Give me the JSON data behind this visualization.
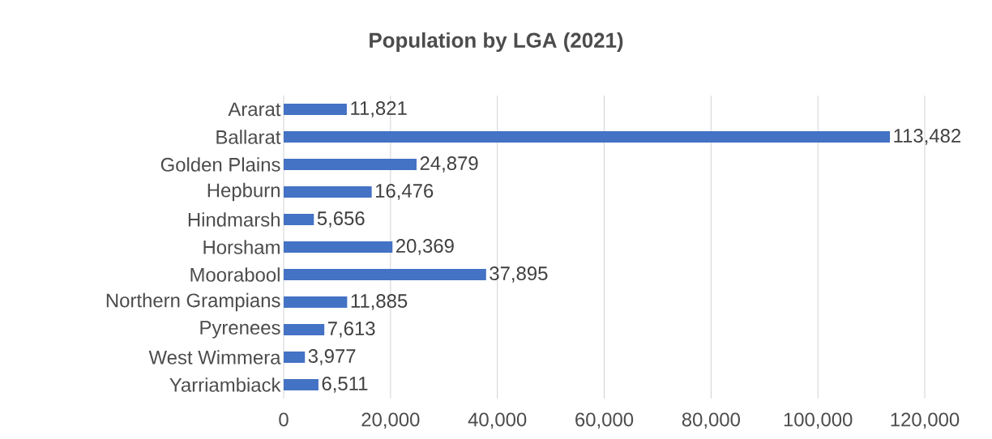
{
  "chart_data": {
    "type": "bar",
    "orientation": "horizontal",
    "title": "Population by LGA (2021)",
    "categories": [
      "Ararat",
      "Ballarat",
      "Golden Plains",
      "Hepburn",
      "Hindmarsh",
      "Horsham",
      "Moorabool",
      "Northern Grampians",
      "Pyrenees",
      "West Wimmera",
      "Yarriambiack"
    ],
    "values": [
      11821,
      113482,
      24879,
      16476,
      5656,
      20369,
      37895,
      11885,
      7613,
      3977,
      6511
    ],
    "value_labels": [
      "11,821",
      "113,482",
      "24,879",
      "16,476",
      "5,656",
      "20,369",
      "37,895",
      "11,885",
      "7,613",
      "3,977",
      "6,511"
    ],
    "color": "#4472c4",
    "xlim": [
      0,
      120000
    ],
    "xticks": [
      0,
      {
        "value": 20000,
        "label": "20,000"
      },
      {
        "value": 40000,
        "label": "40,000"
      },
      {
        "value": 60000,
        "label": "60,000"
      },
      {
        "value": 80000,
        "label": "80,000"
      },
      {
        "value": 100000,
        "label": "100,000"
      },
      {
        "value": 120000,
        "label": "120,000"
      }
    ],
    "grid": "x"
  }
}
